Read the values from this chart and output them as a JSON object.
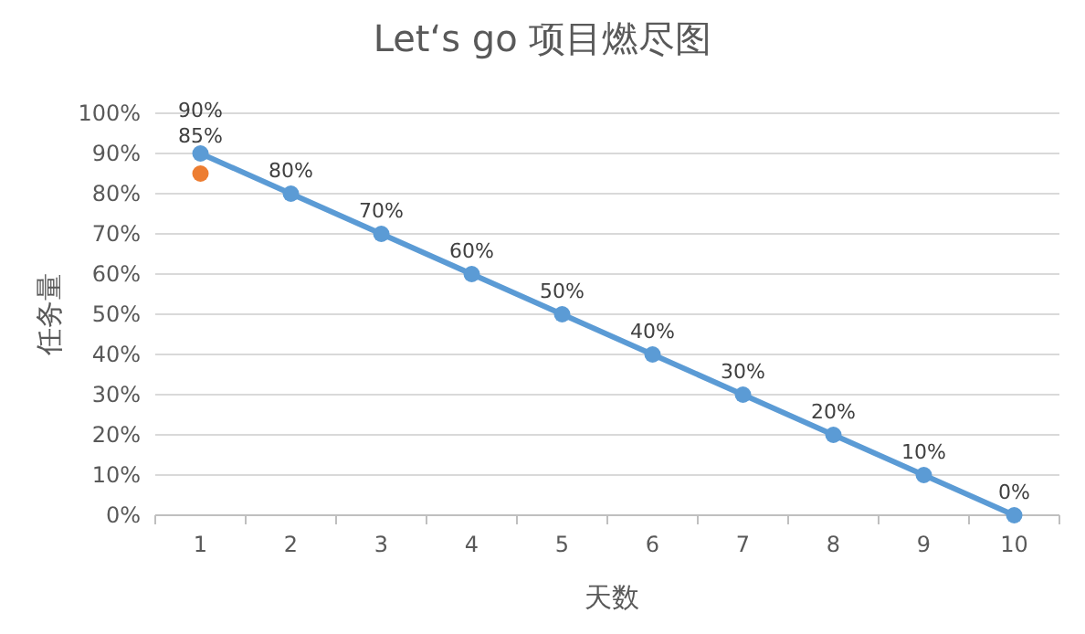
{
  "chart_data": {
    "type": "line",
    "title": "Let‘s go 项目燃尽图",
    "xlabel": "天数",
    "ylabel": "任务量",
    "categories": [
      "1",
      "2",
      "3",
      "4",
      "5",
      "6",
      "7",
      "8",
      "9",
      "10"
    ],
    "series": [
      {
        "color": "#5b9bd5",
        "values": [
          90,
          80,
          70,
          60,
          50,
          40,
          30,
          20,
          10,
          0
        ],
        "value_labels": [
          "90%",
          "80%",
          "70%",
          "60%",
          "50%",
          "40%",
          "30%",
          "20%",
          "10%",
          "0%"
        ]
      },
      {
        "type": "scatter",
        "color": "#ed7d31",
        "values": [
          85,
          null,
          null,
          null,
          null,
          null,
          null,
          null,
          null,
          null
        ],
        "value_labels": [
          "85%",
          null,
          null,
          null,
          null,
          null,
          null,
          null,
          null,
          null
        ]
      }
    ],
    "ylim": [
      0,
      100
    ],
    "yticks": [
      {
        "value": 0,
        "label": "0%"
      },
      {
        "value": 10,
        "label": "10%"
      },
      {
        "value": 20,
        "label": "20%"
      },
      {
        "value": 30,
        "label": "30%"
      },
      {
        "value": 40,
        "label": "40%"
      },
      {
        "value": 50,
        "label": "50%"
      },
      {
        "value": 60,
        "label": "60%"
      },
      {
        "value": 70,
        "label": "70%"
      },
      {
        "value": 80,
        "label": "80%"
      },
      {
        "value": 90,
        "label": "90%"
      },
      {
        "value": 100,
        "label": "100%"
      }
    ],
    "grid": "y",
    "marker": "circle",
    "line_style": "solid"
  }
}
